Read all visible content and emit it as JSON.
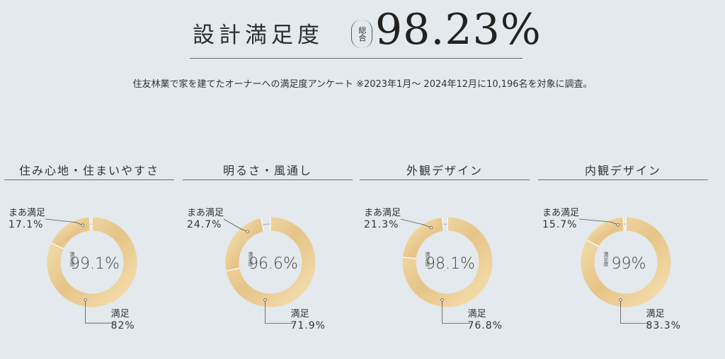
{
  "header": {
    "title": "設計満足度",
    "paren_note": "総合",
    "overall_value": "98.23%"
  },
  "subtitle": "住友林業で家を建てたオーナーへの満足度アンケート ※2023年1月～ 2024年12月に10,196名を対象に調査。",
  "colors": {
    "ring_light": "#f4dfae",
    "ring_dark": "#e6c488",
    "remainder": "#9aa8b1",
    "leader": "#555555"
  },
  "chart_data": [
    {
      "type": "pie",
      "title": "住み心地・住まいやすさ",
      "center_label": "満足度",
      "center_value": "99.1%",
      "slices": [
        {
          "name": "満足",
          "value": 82,
          "label": "82%"
        },
        {
          "name": "まあ満足",
          "value": 17.1,
          "label": "17.1%"
        }
      ]
    },
    {
      "type": "pie",
      "title": "明るさ・風通し",
      "center_label": "満足度",
      "center_value": "96.6%",
      "slices": [
        {
          "name": "満足",
          "value": 71.9,
          "label": "71.9%"
        },
        {
          "name": "まあ満足",
          "value": 24.7,
          "label": "24.7%"
        }
      ]
    },
    {
      "type": "pie",
      "title": "外観デザイン",
      "center_label": "満足度",
      "center_value": "98.1%",
      "slices": [
        {
          "name": "満足",
          "value": 76.8,
          "label": "76.8%"
        },
        {
          "name": "まあ満足",
          "value": 21.3,
          "label": "21.3%"
        }
      ]
    },
    {
      "type": "pie",
      "title": "内観デザイン",
      "center_label": "満足度",
      "center_value": "99%",
      "slices": [
        {
          "name": "満足",
          "value": 83.3,
          "label": "83.3%"
        },
        {
          "name": "まあ満足",
          "value": 15.7,
          "label": "15.7%"
        }
      ]
    }
  ]
}
